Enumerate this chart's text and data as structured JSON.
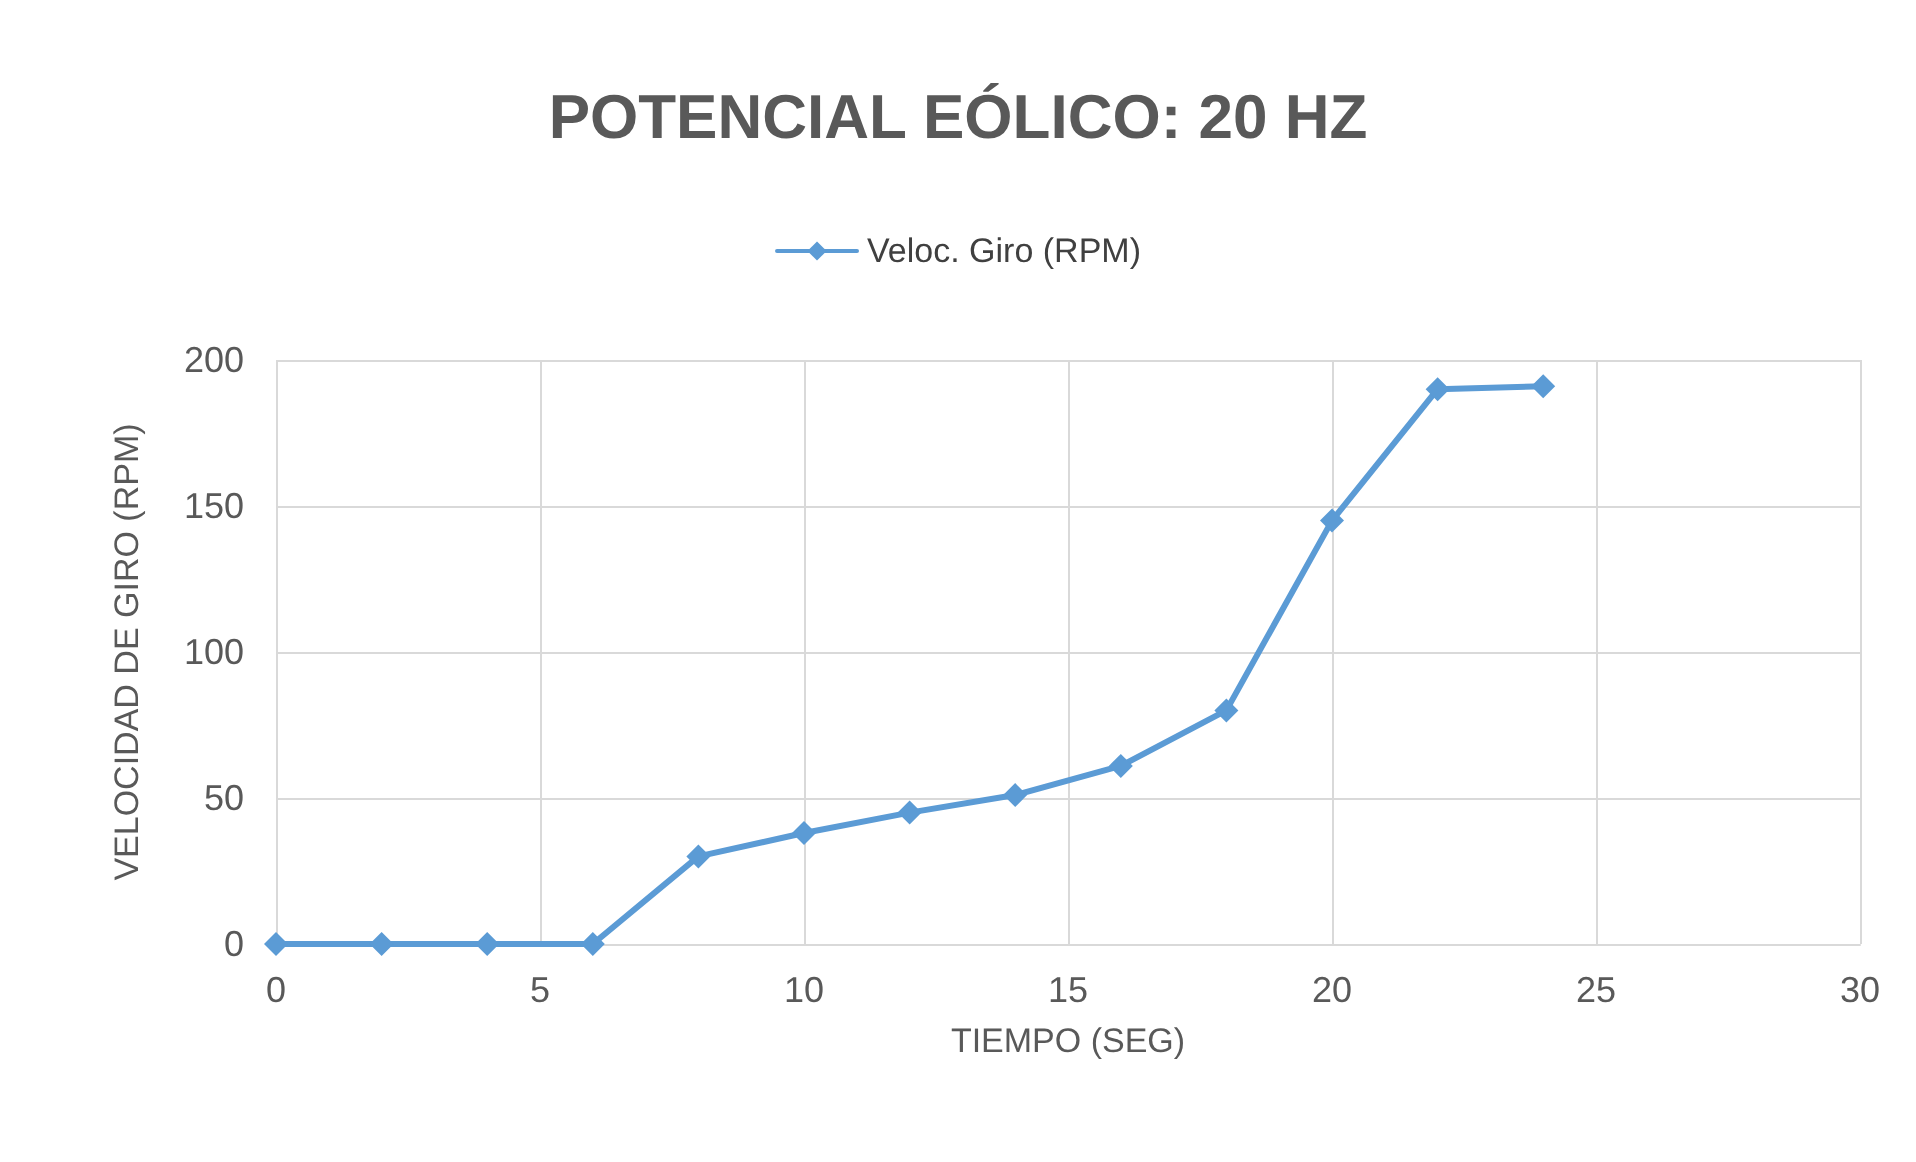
{
  "chart_data": {
    "type": "line",
    "title": "POTENCIAL EÓLICO: 20 HZ",
    "xlabel": "TIEMPO (SEG)",
    "ylabel": "VELOCIDAD DE GIRO (RPM)",
    "x": [
      0,
      2,
      4,
      6,
      8,
      10,
      12,
      14,
      16,
      18,
      20,
      22,
      24
    ],
    "series": [
      {
        "name": "Veloc. Giro (RPM)",
        "color": "#5b9bd5",
        "values": [
          0,
          0,
          0,
          0,
          30,
          38,
          45,
          51,
          61,
          80,
          145,
          190,
          191
        ]
      }
    ],
    "xlim": [
      0,
      30
    ],
    "xticks": [
      0,
      5,
      10,
      15,
      20,
      25,
      30
    ],
    "ylim": [
      0,
      200
    ],
    "yticks": [
      0,
      50,
      100,
      150,
      200
    ],
    "grid": true,
    "legend": "top",
    "marker": "diamond",
    "line_style": "solid"
  }
}
